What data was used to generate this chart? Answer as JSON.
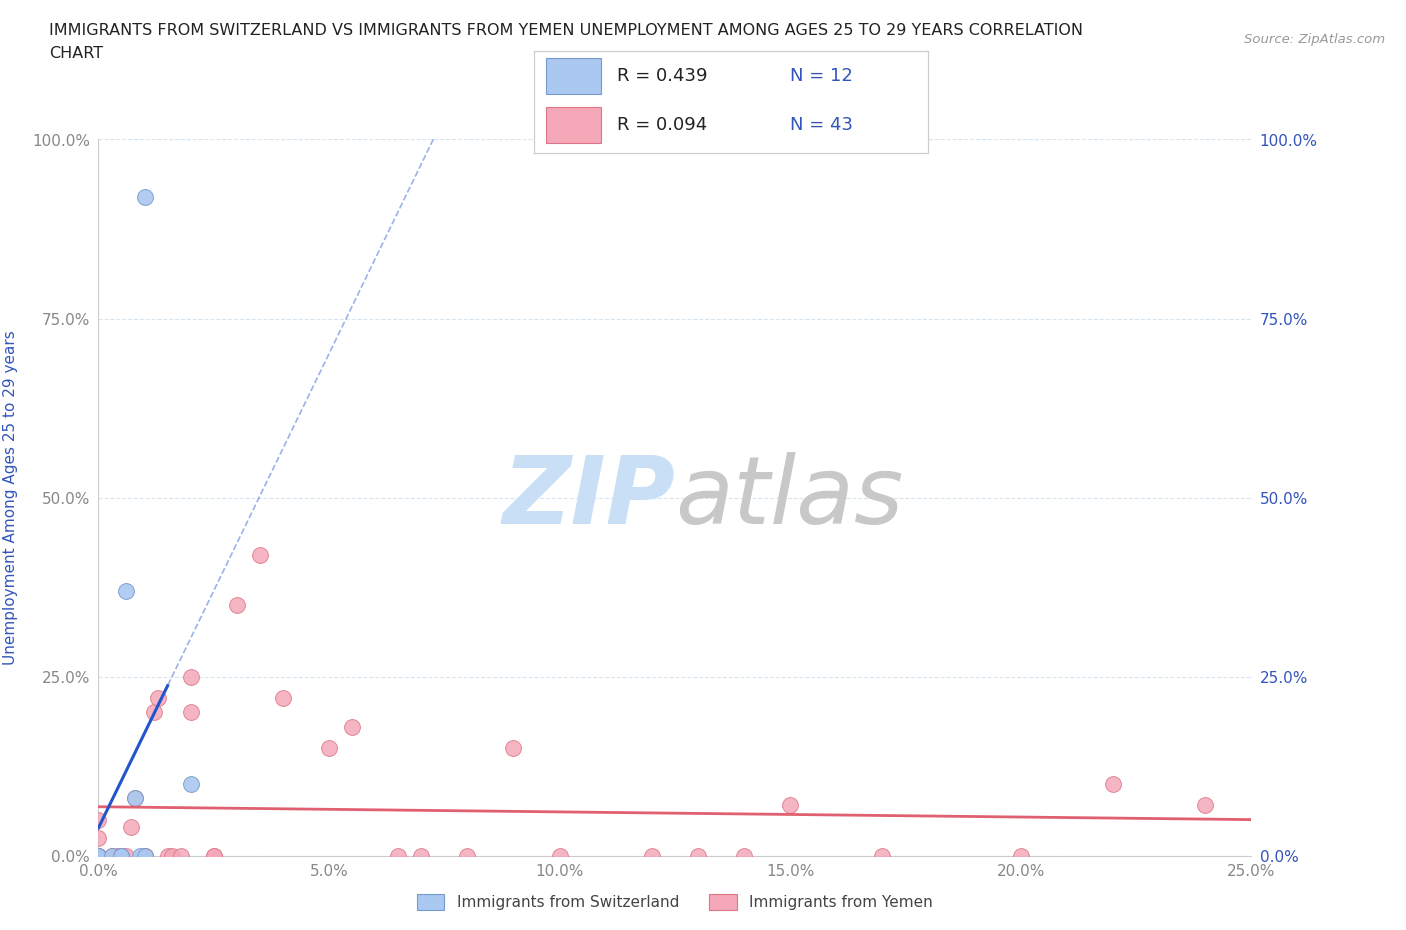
{
  "title_line1": "IMMIGRANTS FROM SWITZERLAND VS IMMIGRANTS FROM YEMEN UNEMPLOYMENT AMONG AGES 25 TO 29 YEARS CORRELATION",
  "title_line2": "CHART",
  "source_text": "Source: ZipAtlas.com",
  "ylabel": "Unemployment Among Ages 25 to 29 years",
  "xlim": [
    0,
    0.25
  ],
  "ylim": [
    0,
    1.0
  ],
  "xtick_labels": [
    "0.0%",
    "5.0%",
    "10.0%",
    "15.0%",
    "20.0%",
    "25.0%"
  ],
  "xtick_vals": [
    0,
    0.05,
    0.1,
    0.15,
    0.2,
    0.25
  ],
  "ytick_labels": [
    "0.0%",
    "25.0%",
    "50.0%",
    "75.0%",
    "100.0%"
  ],
  "ytick_vals": [
    0,
    0.25,
    0.5,
    0.75,
    1.0
  ],
  "switzerland_color": "#aac8f0",
  "yemen_color": "#f4a8b8",
  "switzerland_edge": "#7799cc",
  "yemen_edge": "#dd7788",
  "regression_switzerland_color": "#2255cc",
  "regression_yemen_color": "#e06070",
  "watermark_zip_color": "#c8dff5",
  "watermark_atlas_color": "#c8c8c8",
  "R_switzerland": 0.439,
  "N_switzerland": 12,
  "R_yemen": 0.094,
  "N_yemen": 43,
  "switzerland_x": [
    0.0,
    0.0,
    0.0,
    0.003,
    0.005,
    0.005,
    0.006,
    0.008,
    0.009,
    0.01,
    0.01,
    0.02
  ],
  "switzerland_y": [
    0.0,
    0.0,
    0.0,
    0.0,
    0.0,
    0.0,
    0.37,
    0.08,
    0.0,
    0.0,
    0.92,
    0.1
  ],
  "yemen_x": [
    0.0,
    0.0,
    0.0,
    0.0,
    0.0,
    0.0,
    0.0,
    0.003,
    0.004,
    0.005,
    0.005,
    0.006,
    0.007,
    0.008,
    0.01,
    0.01,
    0.012,
    0.013,
    0.015,
    0.016,
    0.018,
    0.02,
    0.02,
    0.025,
    0.025,
    0.03,
    0.035,
    0.04,
    0.05,
    0.055,
    0.065,
    0.07,
    0.08,
    0.09,
    0.1,
    0.12,
    0.13,
    0.14,
    0.15,
    0.17,
    0.2,
    0.22,
    0.24
  ],
  "yemen_y": [
    0.0,
    0.0,
    0.0,
    0.0,
    0.0,
    0.025,
    0.05,
    0.0,
    0.0,
    0.0,
    0.0,
    0.0,
    0.04,
    0.08,
    0.0,
    0.0,
    0.2,
    0.22,
    0.0,
    0.0,
    0.0,
    0.2,
    0.25,
    0.0,
    0.0,
    0.35,
    0.42,
    0.22,
    0.15,
    0.18,
    0.0,
    0.0,
    0.0,
    0.15,
    0.0,
    0.0,
    0.0,
    0.0,
    0.07,
    0.0,
    0.0,
    0.1,
    0.07
  ],
  "background_color": "#ffffff",
  "grid_color": "#d8e4ee",
  "title_color": "#222222",
  "axis_label_color": "#3355bb",
  "tick_color": "#888888",
  "legend_text_color": "#222222",
  "bottom_legend_color": "#444444"
}
